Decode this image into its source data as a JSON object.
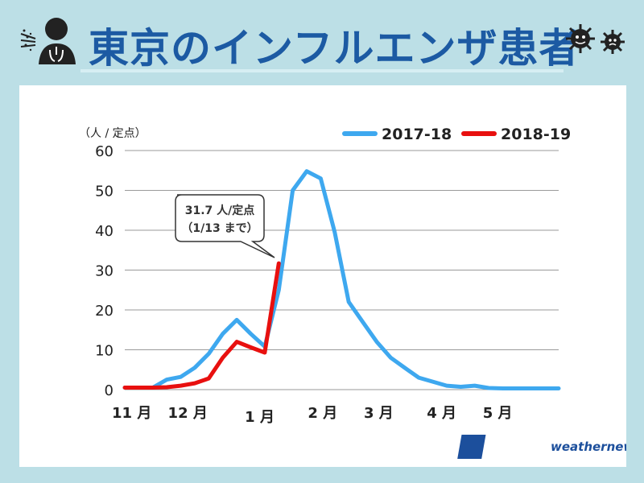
{
  "title": "東京のインフルエンザ患者",
  "brand": "weathernews",
  "brand_mark": "WN",
  "colors": {
    "series_2017": "#3ea8ef",
    "series_2018": "#e8100f",
    "title": "#1c5aa3",
    "background": "#bcdfe6"
  },
  "callout": {
    "line1": "31.7 人/定点",
    "line2": "（1/13 まで）"
  },
  "chart_data": {
    "type": "line",
    "ylabel": "（人 / 定点）",
    "ylim": [
      0,
      60
    ],
    "yticks": [
      0,
      10,
      20,
      30,
      40,
      50,
      60
    ],
    "grid": true,
    "legend_position": "top-right",
    "xlim": [
      0,
      31
    ],
    "month_labels": [
      {
        "label": "11 月",
        "x": 0
      },
      {
        "label": "12 月",
        "x": 4
      },
      {
        "label": "1 月",
        "x": 9.5
      },
      {
        "label": "2 月",
        "x": 14
      },
      {
        "label": "3 月",
        "x": 18
      },
      {
        "label": "4 月",
        "x": 22.5
      },
      {
        "label": "5 月",
        "x": 26.5
      }
    ],
    "series": [
      {
        "name": "2017-18",
        "color": "#3ea8ef",
        "x": [
          0,
          1,
          2,
          3,
          4,
          5,
          6,
          7,
          8,
          9,
          10,
          11,
          12,
          13,
          14,
          15,
          16,
          17,
          18,
          19,
          20,
          21,
          22,
          23,
          24,
          25,
          26,
          27,
          28,
          29,
          30,
          31
        ],
        "values": [
          0.5,
          0.5,
          0.5,
          2.5,
          3.2,
          5.5,
          9,
          14,
          17.5,
          14,
          10.8,
          25,
          50,
          54.8,
          53,
          39.5,
          22,
          17,
          12,
          8,
          5.5,
          3,
          2,
          1,
          0.7,
          1,
          0.4,
          0.3,
          0.3,
          0.3,
          0.3,
          0.3
        ]
      },
      {
        "name": "2018-19",
        "color": "#e8100f",
        "x": [
          0,
          1,
          2,
          3,
          4,
          5,
          6,
          7,
          8,
          9,
          10,
          11
        ],
        "values": [
          0.5,
          0.5,
          0.5,
          0.6,
          1,
          1.6,
          2.8,
          8,
          12,
          10.6,
          9.3,
          31.7
        ]
      }
    ]
  }
}
